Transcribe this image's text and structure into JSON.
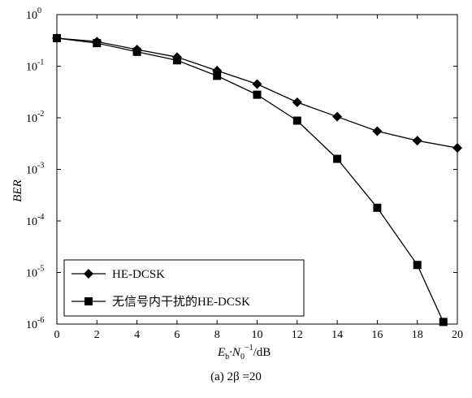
{
  "chart_data": {
    "type": "line",
    "xlabel": {
      "main": "E",
      "sub1": "b",
      "mid": "·N",
      "sub2": "0",
      "sup": "−1",
      "unit": "/dB"
    },
    "ylabel": "BER",
    "xlim": [
      0,
      20
    ],
    "ylim": [
      1e-06,
      1
    ],
    "y_scale": "log",
    "x_ticks": [
      0,
      2,
      4,
      6,
      8,
      10,
      12,
      14,
      16,
      18,
      20
    ],
    "x_tick_labels": [
      "0",
      "2",
      "4",
      "6",
      "8",
      "10",
      "12",
      "14",
      "16",
      "18",
      "20"
    ],
    "y_ticks": [
      {
        "value": 1,
        "exp": "0"
      },
      {
        "value": 0.1,
        "exp": "-1"
      },
      {
        "value": 0.01,
        "exp": "-2"
      },
      {
        "value": 0.001,
        "exp": "-3"
      },
      {
        "value": 0.0001,
        "exp": "-4"
      },
      {
        "value": 1e-05,
        "exp": "-5"
      },
      {
        "value": 1e-06,
        "exp": "-6"
      }
    ],
    "y_tick_base": "10",
    "grid": false,
    "legend_position": "bottom-left",
    "series": [
      {
        "name": "HE-DCSK",
        "marker": "diamond",
        "color": "#000000",
        "x": [
          0,
          2,
          4,
          6,
          8,
          10,
          12,
          14,
          16,
          18,
          20
        ],
        "y": [
          0.35,
          0.3,
          0.21,
          0.15,
          0.082,
          0.045,
          0.02,
          0.0105,
          0.0055,
          0.0036,
          0.0026
        ]
      },
      {
        "name": "无信号内干扰的HE-DCSK",
        "marker": "square",
        "color": "#000000",
        "x": [
          0,
          2,
          4,
          6,
          8,
          10,
          12,
          14,
          16,
          18,
          19.3
        ],
        "y": [
          0.35,
          0.28,
          0.19,
          0.13,
          0.065,
          0.028,
          0.0088,
          0.0016,
          0.00018,
          1.4e-05,
          1.1e-06
        ]
      }
    ]
  },
  "caption": "(a) 2β =20"
}
